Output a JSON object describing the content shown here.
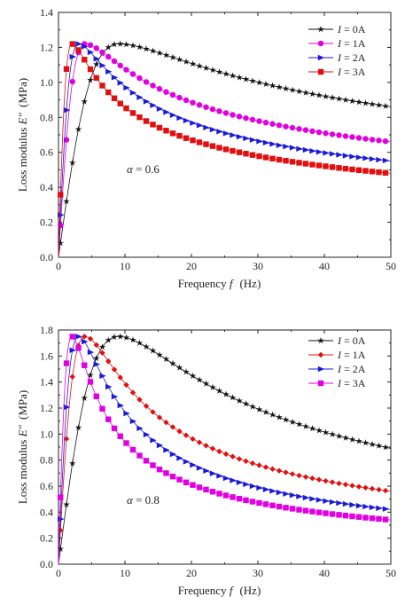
{
  "chart_data": [
    {
      "type": "line",
      "ylabel_main": "Loss modulus ",
      "ylabel_sym": "E\"",
      "ylabel_unit": "(MPa)",
      "xlabel_main": "Frequency ",
      "xlabel_sym": "f",
      "xlabel_unit": "(Hz)",
      "xlim": [
        0,
        50
      ],
      "ylim": [
        0,
        1.4
      ],
      "xticks": [
        "0",
        "10",
        "20",
        "30",
        "40",
        "50"
      ],
      "yticks": [
        "0.0",
        "0.2",
        "0.4",
        "0.6",
        "0.8",
        "1.0",
        "1.2",
        "1.4"
      ],
      "annotation_sym": "α",
      "annotation_val": " = 0.6",
      "legend_position": "top-right",
      "series": [
        {
          "name_sym": "I",
          "name_val": " = 0A",
          "color": "#111111",
          "marker": "star",
          "fpeak": 9.0,
          "peak": 1.22,
          "tail": 0.86
        },
        {
          "name_sym": "I",
          "name_val": " = 1A",
          "color": "#e000e0",
          "marker": "circle",
          "fpeak": 4.0,
          "peak": 1.22,
          "tail": 0.66
        },
        {
          "name_sym": "I",
          "name_val": " = 2A",
          "color": "#1a1ad8",
          "marker": "triangle",
          "fpeak": 3.0,
          "peak": 1.22,
          "tail": 0.55
        },
        {
          "name_sym": "I",
          "name_val": " = 3A",
          "color": "#e01010",
          "marker": "square",
          "fpeak": 2.0,
          "peak": 1.22,
          "tail": 0.48
        }
      ]
    },
    {
      "type": "line",
      "ylabel_main": "Loss modulus ",
      "ylabel_sym": "E\"",
      "ylabel_unit": "(MPa)",
      "xlabel_main": "Frequency ",
      "xlabel_sym": "f",
      "xlabel_unit": "(Hz)",
      "xlim": [
        0,
        50
      ],
      "ylim": [
        0,
        1.8
      ],
      "xticks": [
        "0",
        "10",
        "20",
        "30",
        "40",
        "50"
      ],
      "yticks": [
        "0.0",
        "0.2",
        "0.4",
        "0.6",
        "0.8",
        "1.0",
        "1.2",
        "1.4",
        "1.6",
        "1.8"
      ],
      "annotation_sym": "α",
      "annotation_val": " = 0.8",
      "legend_position": "top-right",
      "series": [
        {
          "name_sym": "I",
          "name_val": " = 0A",
          "color": "#111111",
          "marker": "star",
          "fpeak": 9.0,
          "peak": 1.75,
          "tail": 0.89
        },
        {
          "name_sym": "I",
          "name_val": " = 1A",
          "color": "#e01010",
          "marker": "diamond",
          "fpeak": 4.0,
          "peak": 1.75,
          "tail": 0.56
        },
        {
          "name_sym": "I",
          "name_val": " = 2A",
          "color": "#1a1ad8",
          "marker": "triangle",
          "fpeak": 3.0,
          "peak": 1.75,
          "tail": 0.42
        },
        {
          "name_sym": "I",
          "name_val": " = 3A",
          "color": "#e000e0",
          "marker": "square",
          "fpeak": 2.0,
          "peak": 1.75,
          "tail": 0.34
        }
      ]
    }
  ]
}
